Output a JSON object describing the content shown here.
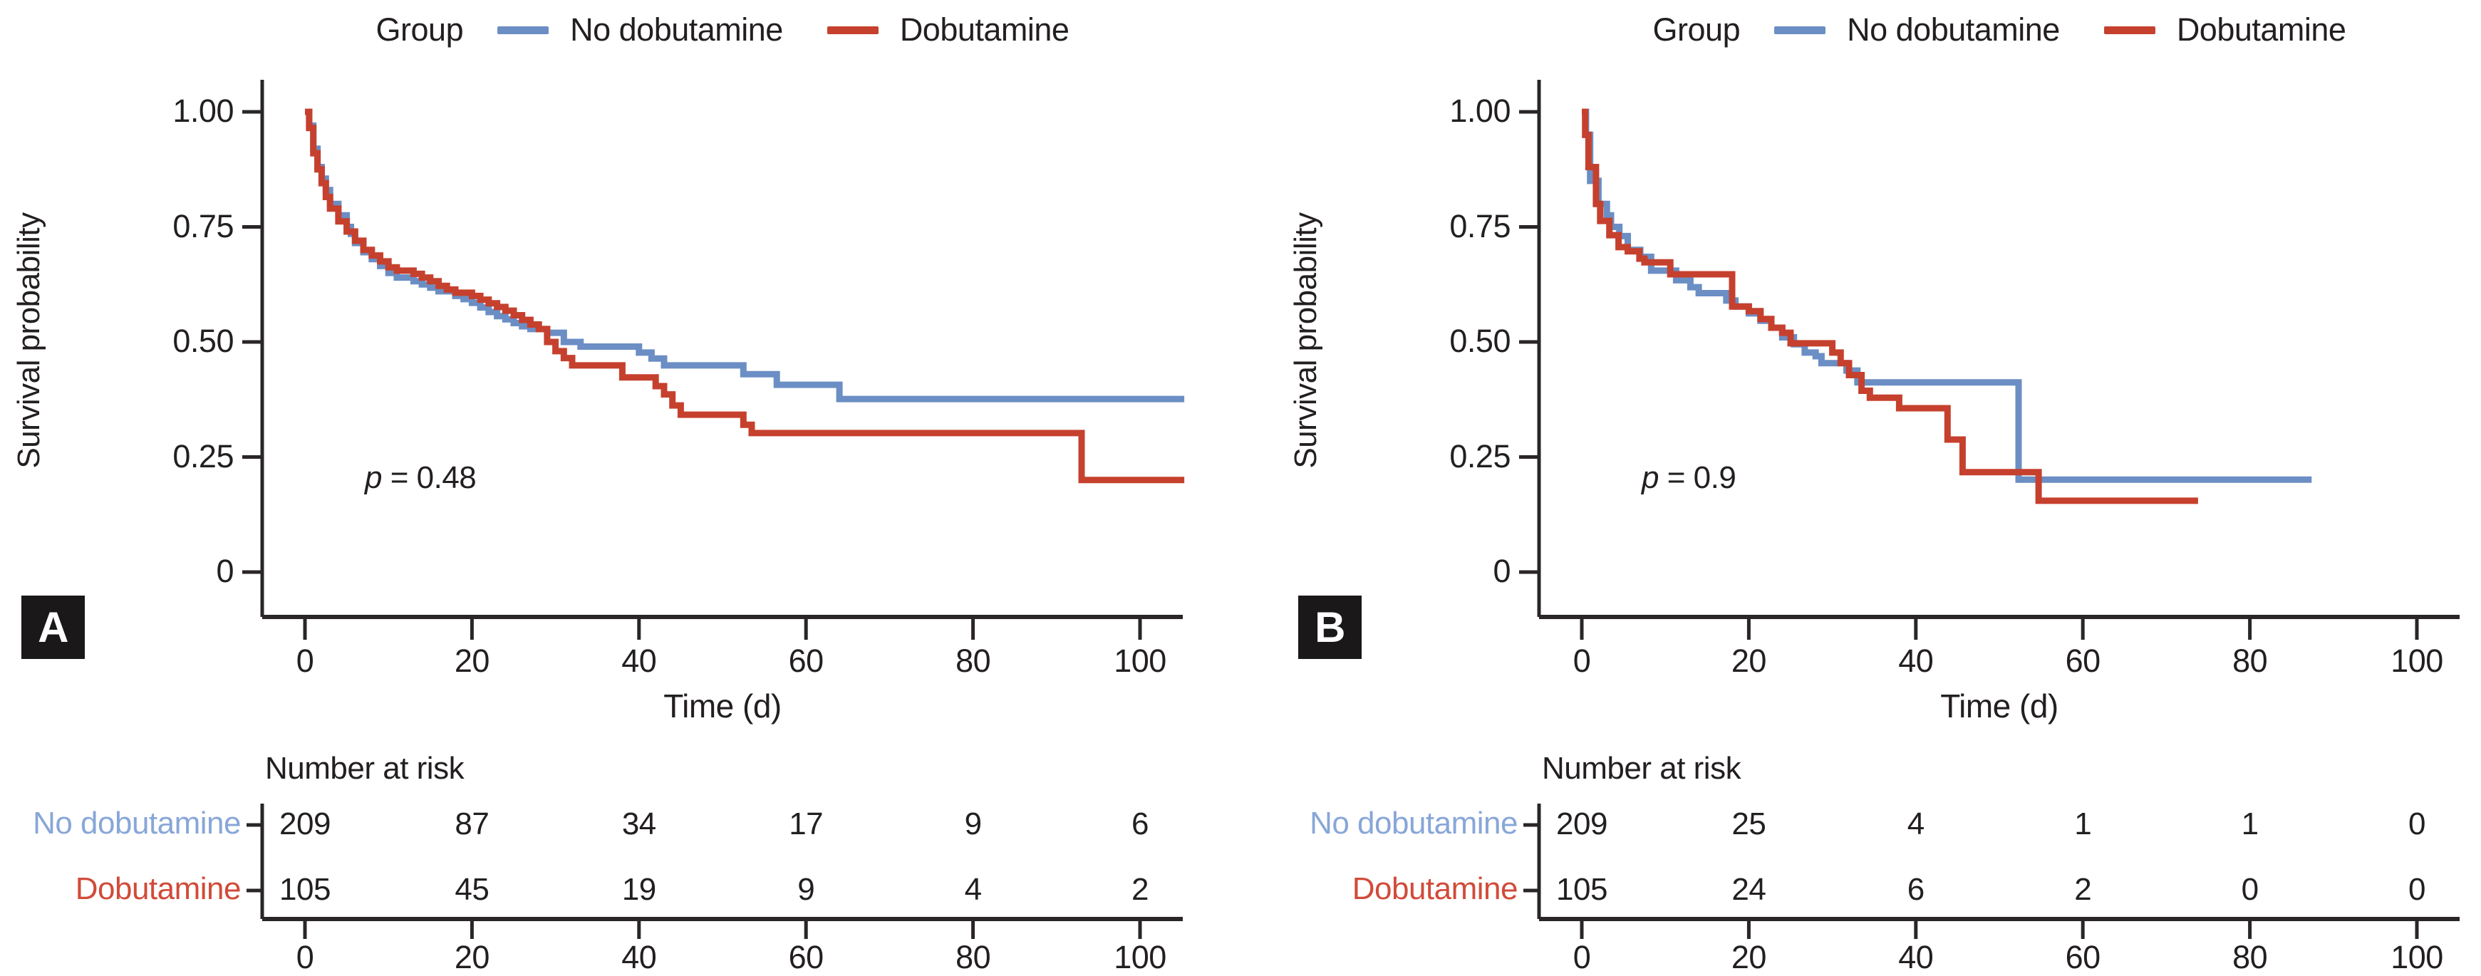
{
  "figure_title": "",
  "chart_data": [
    {
      "type": "line",
      "subtype": "kaplan-meier-step",
      "badge": "A",
      "legend": {
        "title": "Group",
        "position": "top"
      },
      "ylabel": "Survival probability",
      "xlabel": "Time (d)",
      "xlim": [
        0,
        105
      ],
      "ylim": [
        0,
        1.0
      ],
      "grid": false,
      "x_ticks": [
        0,
        20,
        40,
        60,
        80,
        100
      ],
      "y_tick_values": [
        1.0,
        0.75,
        0.5,
        0.25,
        0
      ],
      "y_tick_labels": [
        "1.00",
        "0.75",
        "0.50",
        "0.25",
        "0"
      ],
      "p_symbol": "p",
      "p_text": " = 0.48",
      "series": [
        {
          "name": "No dobutamine",
          "color": "#6b8ec4",
          "steps": [
            [
              0,
              1.0
            ],
            [
              0.5,
              0.97
            ],
            [
              1,
              0.92
            ],
            [
              1.5,
              0.88
            ],
            [
              2,
              0.855
            ],
            [
              2.5,
              0.83
            ],
            [
              3,
              0.8
            ],
            [
              4,
              0.775
            ],
            [
              5,
              0.75
            ],
            [
              5.5,
              0.735
            ],
            [
              6,
              0.715
            ],
            [
              7,
              0.695
            ],
            [
              8,
              0.68
            ],
            [
              9,
              0.665
            ],
            [
              10,
              0.65
            ],
            [
              11,
              0.64
            ],
            [
              13,
              0.632
            ],
            [
              14,
              0.625
            ],
            [
              15,
              0.618
            ],
            [
              16,
              0.61
            ],
            [
              18,
              0.6
            ],
            [
              19,
              0.593
            ],
            [
              20,
              0.585
            ],
            [
              21,
              0.575
            ],
            [
              22,
              0.565
            ],
            [
              23,
              0.556
            ],
            [
              24,
              0.549
            ],
            [
              25,
              0.541
            ],
            [
              26,
              0.534
            ],
            [
              27,
              0.528
            ],
            [
              29,
              0.52
            ],
            [
              31,
              0.5
            ],
            [
              33,
              0.49
            ],
            [
              40,
              0.477
            ],
            [
              41.5,
              0.464
            ],
            [
              43,
              0.449
            ],
            [
              52.5,
              0.43
            ],
            [
              56.5,
              0.407
            ],
            [
              64,
              0.376
            ],
            [
              105.3,
              0.376
            ]
          ]
        },
        {
          "name": "Dobutamine",
          "color": "#c6402e",
          "steps": [
            [
              0,
              1.0
            ],
            [
              0.5,
              0.965
            ],
            [
              1,
              0.91
            ],
            [
              1.5,
              0.875
            ],
            [
              2,
              0.845
            ],
            [
              2.5,
              0.815
            ],
            [
              3,
              0.79
            ],
            [
              4,
              0.762
            ],
            [
              5,
              0.74
            ],
            [
              6,
              0.72
            ],
            [
              7,
              0.7
            ],
            [
              8,
              0.688
            ],
            [
              9,
              0.675
            ],
            [
              10,
              0.662
            ],
            [
              11,
              0.655
            ],
            [
              13,
              0.648
            ],
            [
              14,
              0.64
            ],
            [
              15,
              0.632
            ],
            [
              16,
              0.622
            ],
            [
              17,
              0.614
            ],
            [
              18,
              0.607
            ],
            [
              20,
              0.6
            ],
            [
              21,
              0.592
            ],
            [
              22,
              0.584
            ],
            [
              23,
              0.576
            ],
            [
              24,
              0.568
            ],
            [
              25,
              0.558
            ],
            [
              26,
              0.548
            ],
            [
              27,
              0.538
            ],
            [
              28,
              0.528
            ],
            [
              29,
              0.5
            ],
            [
              30,
              0.48
            ],
            [
              31,
              0.465
            ],
            [
              32,
              0.449
            ],
            [
              38,
              0.423
            ],
            [
              42,
              0.404
            ],
            [
              43,
              0.386
            ],
            [
              44,
              0.362
            ],
            [
              45,
              0.342
            ],
            [
              52.5,
              0.32
            ],
            [
              53.5,
              0.302
            ],
            [
              93,
              0.2
            ],
            [
              105.3,
              0.2
            ]
          ]
        }
      ],
      "number_at_risk": {
        "header": "Number at risk",
        "times": [
          0,
          20,
          40,
          60,
          80,
          100
        ],
        "rows": [
          {
            "group": "No dobutamine",
            "label_color": "#88a6d8",
            "counts": [
              209,
              87,
              34,
              17,
              9,
              6
            ]
          },
          {
            "group": "Dobutamine",
            "label_color": "#d14b39",
            "counts": [
              105,
              45,
              19,
              9,
              4,
              2
            ]
          }
        ]
      }
    },
    {
      "type": "line",
      "subtype": "kaplan-meier-step",
      "badge": "B",
      "legend": {
        "title": "Group",
        "position": "top"
      },
      "ylabel": "Survival probability",
      "xlabel": "Time (d)",
      "xlim": [
        0,
        105
      ],
      "ylim": [
        0,
        1.0
      ],
      "grid": false,
      "x_ticks": [
        0,
        20,
        40,
        60,
        80,
        100
      ],
      "y_tick_values": [
        1.0,
        0.75,
        0.5,
        0.25,
        0
      ],
      "y_tick_labels": [
        "1.00",
        "0.75",
        "0.50",
        "0.25",
        "0"
      ],
      "p_symbol": "p",
      "p_text": " = 0.9",
      "series": [
        {
          "name": "No dobutamine",
          "color": "#6b8ec4",
          "steps": [
            [
              0,
              1.0
            ],
            [
              0.5,
              0.95
            ],
            [
              1,
              0.85
            ],
            [
              2,
              0.8
            ],
            [
              3,
              0.775
            ],
            [
              3.5,
              0.75
            ],
            [
              4.5,
              0.73
            ],
            [
              5.5,
              0.7
            ],
            [
              7,
              0.685
            ],
            [
              8.3,
              0.655
            ],
            [
              11.3,
              0.634
            ],
            [
              13,
              0.619
            ],
            [
              14,
              0.606
            ],
            [
              17.3,
              0.59
            ],
            [
              18.4,
              0.577
            ],
            [
              20,
              0.562
            ],
            [
              21.4,
              0.546
            ],
            [
              22.7,
              0.531
            ],
            [
              24,
              0.51
            ],
            [
              25.4,
              0.495
            ],
            [
              26.7,
              0.477
            ],
            [
              28,
              0.469
            ],
            [
              28.7,
              0.454
            ],
            [
              31.7,
              0.438
            ],
            [
              33,
              0.412
            ],
            [
              52.3,
              0.201
            ],
            [
              87.4,
              0.201
            ]
          ]
        },
        {
          "name": "Dobutamine",
          "color": "#c6402e",
          "steps": [
            [
              0,
              1.0
            ],
            [
              0.4,
              0.95
            ],
            [
              0.8,
              0.88
            ],
            [
              1.7,
              0.8
            ],
            [
              2.2,
              0.763
            ],
            [
              3.3,
              0.732
            ],
            [
              4.4,
              0.706
            ],
            [
              5.5,
              0.697
            ],
            [
              6.9,
              0.681
            ],
            [
              7.5,
              0.673
            ],
            [
              10.6,
              0.647
            ],
            [
              18,
              0.577
            ],
            [
              20,
              0.567
            ],
            [
              21.4,
              0.55
            ],
            [
              22.7,
              0.531
            ],
            [
              24,
              0.52
            ],
            [
              25,
              0.497
            ],
            [
              30,
              0.477
            ],
            [
              31,
              0.454
            ],
            [
              32,
              0.428
            ],
            [
              33.5,
              0.394
            ],
            [
              34.5,
              0.379
            ],
            [
              38,
              0.356
            ],
            [
              43.8,
              0.288
            ],
            [
              45.6,
              0.217
            ],
            [
              54.7,
              0.155
            ],
            [
              73.8,
              0.155
            ]
          ]
        }
      ],
      "number_at_risk": {
        "header": "Number at risk",
        "times": [
          0,
          20,
          40,
          60,
          80,
          100
        ],
        "rows": [
          {
            "group": "No dobutamine",
            "label_color": "#88a6d8",
            "counts": [
              209,
              25,
              4,
              1,
              1,
              0
            ]
          },
          {
            "group": "Dobutamine",
            "label_color": "#d14b39",
            "counts": [
              105,
              24,
              6,
              2,
              0,
              0
            ]
          }
        ]
      }
    }
  ]
}
